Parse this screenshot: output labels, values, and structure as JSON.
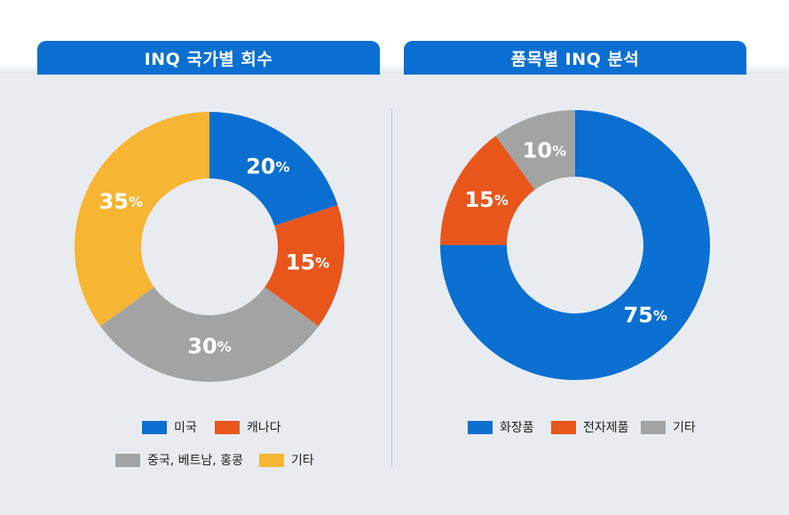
{
  "panels": [
    {
      "title": "INQ 국가별 회수"
    },
    {
      "title": "품목별 INQ 분석"
    }
  ],
  "chart_data": [
    {
      "type": "pie",
      "title": "INQ 국가별 회수",
      "categories": [
        "미국",
        "캐나다",
        "중국, 베트남, 홍콩",
        "기타"
      ],
      "values": [
        20,
        15,
        30,
        35
      ],
      "labels": [
        "20%",
        "15%",
        "30%",
        "35%"
      ],
      "colors": [
        "#0a6fd0",
        "#e8561c",
        "#a3a3a3",
        "#f6b532"
      ],
      "donut": true,
      "legend": "bottom"
    },
    {
      "type": "pie",
      "title": "품목별 INQ 분석",
      "categories": [
        "화장품",
        "전자제품",
        "기타"
      ],
      "values": [
        75,
        15,
        10
      ],
      "labels": [
        "75%",
        "15%",
        "10%"
      ],
      "colors": [
        "#0a6fd0",
        "#e8561c",
        "#a3a3a3"
      ],
      "donut": true,
      "legend": "bottom"
    }
  ]
}
